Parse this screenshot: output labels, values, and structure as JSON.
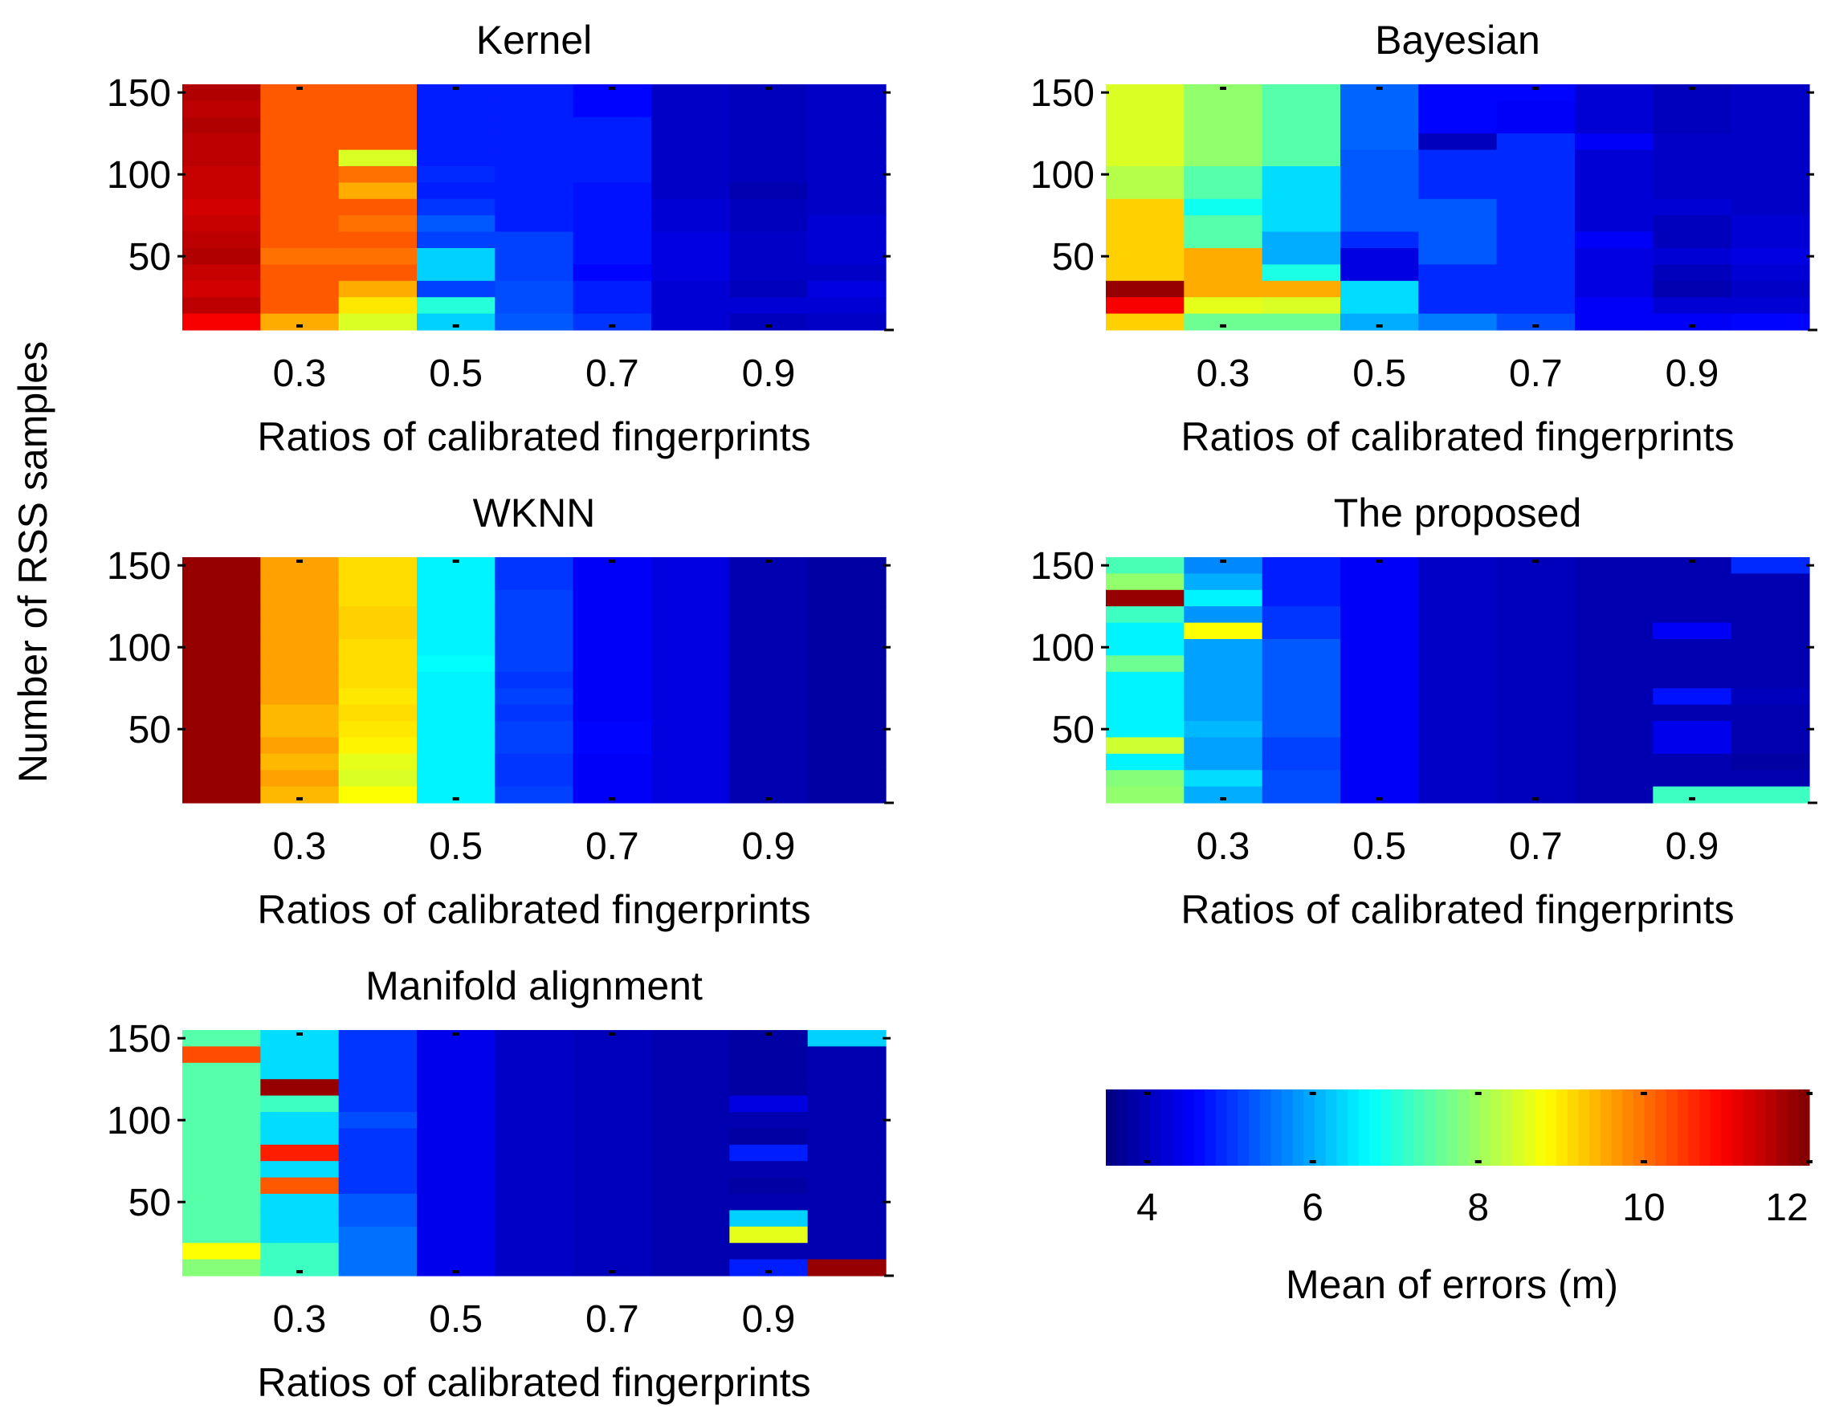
{
  "figure": {
    "ylabel": "Number of RSS samples",
    "colorbar": {
      "label": "Mean of errors (m)",
      "range": [
        3.5,
        12
      ],
      "ticks": [
        "4",
        "6",
        "8",
        "10",
        "12"
      ],
      "colormap": "jet"
    }
  },
  "chart_data": [
    {
      "type": "heatmap",
      "title": "Kernel",
      "xlabel": "Ratios of calibrated fingerprints",
      "x": [
        0.2,
        0.3,
        0.4,
        0.5,
        0.6,
        0.7,
        0.8,
        0.9,
        1.0
      ],
      "xtick_labels": [
        "0.3",
        "0.5",
        "0.7",
        "0.9"
      ],
      "ytick_labels": [
        "150",
        "100",
        "50"
      ],
      "ylim": [
        5,
        155
      ],
      "columns": [
        [
          11.6,
          11.5,
          11.6,
          11.5,
          11.5,
          11.4,
          11.4,
          11.3,
          11.4,
          11.5,
          11.6,
          11.4,
          11.3,
          11.5,
          11.0
        ],
        [
          10.2,
          10.2,
          10.2,
          10.2,
          10.2,
          10.2,
          10.2,
          10.2,
          10.2,
          10.2,
          10.0,
          10.2,
          10.2,
          10.2,
          9.5
        ],
        [
          10.2,
          10.2,
          10.2,
          10.2,
          8.5,
          10.0,
          9.5,
          10.2,
          10.0,
          10.2,
          10.0,
          10.2,
          9.5,
          9.0,
          8.5
        ],
        [
          4.8,
          4.8,
          4.8,
          4.8,
          4.8,
          4.9,
          4.8,
          5.0,
          5.3,
          5.1,
          6.3,
          6.3,
          5.1,
          7.0,
          6.3
        ],
        [
          4.8,
          4.8,
          4.8,
          4.8,
          4.8,
          4.8,
          4.8,
          4.8,
          4.8,
          5.1,
          5.1,
          5.1,
          5.2,
          5.2,
          5.3
        ],
        [
          4.6,
          4.6,
          4.8,
          4.8,
          4.8,
          4.8,
          4.7,
          4.7,
          4.7,
          4.7,
          4.7,
          4.6,
          4.8,
          4.8,
          5.0
        ],
        [
          4.1,
          4.1,
          4.1,
          4.1,
          4.1,
          4.1,
          4.1,
          4.2,
          4.2,
          4.3,
          4.3,
          4.3,
          4.2,
          4.2,
          4.2
        ],
        [
          4.0,
          4.0,
          4.0,
          4.0,
          4.0,
          4.0,
          3.9,
          4.0,
          4.0,
          4.1,
          4.1,
          4.1,
          4.0,
          4.2,
          4.0
        ],
        [
          4.1,
          4.1,
          4.1,
          4.1,
          4.1,
          4.1,
          4.1,
          4.1,
          4.2,
          4.2,
          4.2,
          4.1,
          4.3,
          4.2,
          4.1
        ]
      ]
    },
    {
      "type": "heatmap",
      "title": "Bayesian",
      "xlabel": "Ratios of calibrated fingerprints",
      "x": [
        0.2,
        0.3,
        0.4,
        0.5,
        0.6,
        0.7,
        0.8,
        0.9,
        1.0
      ],
      "xtick_labels": [
        "0.3",
        "0.5",
        "0.7",
        "0.9"
      ],
      "ytick_labels": [
        "150",
        "100",
        "50"
      ],
      "ylim": [
        5,
        155
      ],
      "columns": [
        [
          8.5,
          8.5,
          8.5,
          8.5,
          8.5,
          8.2,
          8.2,
          9.2,
          9.2,
          9.2,
          9.2,
          9.2,
          11.8,
          11.0,
          9.2
        ],
        [
          7.9,
          7.9,
          7.9,
          7.9,
          7.9,
          7.4,
          7.4,
          6.8,
          7.4,
          7.4,
          9.5,
          9.5,
          9.5,
          8.6,
          7.6
        ],
        [
          7.4,
          7.4,
          7.4,
          7.4,
          7.4,
          6.4,
          6.4,
          6.4,
          6.4,
          6.0,
          6.0,
          6.9,
          9.5,
          8.5,
          7.6
        ],
        [
          5.4,
          5.4,
          5.4,
          5.4,
          5.3,
          5.3,
          5.3,
          5.3,
          5.3,
          4.9,
          4.3,
          4.3,
          6.4,
          6.4,
          6.0
        ],
        [
          4.6,
          4.6,
          4.6,
          4.0,
          4.9,
          4.9,
          4.9,
          5.3,
          5.3,
          5.3,
          5.3,
          4.9,
          4.9,
          4.9,
          5.6
        ],
        [
          4.6,
          4.5,
          4.5,
          4.9,
          4.9,
          4.9,
          4.9,
          4.9,
          4.9,
          4.9,
          4.9,
          4.9,
          4.9,
          4.9,
          5.2
        ],
        [
          4.2,
          4.2,
          4.2,
          4.5,
          4.2,
          4.2,
          4.2,
          4.2,
          4.2,
          4.5,
          4.3,
          4.3,
          4.3,
          4.5,
          4.5
        ],
        [
          4.0,
          4.0,
          4.0,
          4.1,
          4.1,
          4.1,
          4.1,
          4.2,
          4.0,
          4.0,
          4.2,
          4.0,
          3.9,
          4.2,
          4.5
        ],
        [
          4.1,
          4.1,
          4.1,
          4.1,
          4.1,
          4.1,
          4.1,
          4.1,
          4.2,
          4.2,
          4.3,
          4.2,
          4.1,
          4.2,
          4.6
        ]
      ]
    },
    {
      "type": "heatmap",
      "title": "WKNN",
      "xlabel": "Ratios of calibrated fingerprints",
      "x": [
        0.2,
        0.3,
        0.4,
        0.5,
        0.6,
        0.7,
        0.8,
        0.9,
        1.0
      ],
      "xtick_labels": [
        "0.3",
        "0.5",
        "0.7",
        "0.9"
      ],
      "ytick_labels": [
        "150",
        "100",
        "50"
      ],
      "ylim": [
        5,
        155
      ],
      "columns": [
        [
          11.8,
          11.8,
          11.8,
          11.8,
          11.8,
          11.8,
          11.8,
          11.8,
          11.8,
          11.8,
          11.8,
          11.8,
          11.8,
          11.8,
          11.8
        ],
        [
          9.6,
          9.6,
          9.6,
          9.6,
          9.6,
          9.6,
          9.6,
          9.6,
          9.6,
          9.4,
          9.4,
          9.6,
          9.4,
          9.6,
          9.4
        ],
        [
          9.1,
          9.1,
          9.1,
          9.2,
          9.2,
          9.1,
          9.1,
          9.1,
          9.0,
          9.1,
          9.0,
          8.9,
          8.6,
          8.5,
          8.8
        ],
        [
          6.6,
          6.6,
          6.6,
          6.6,
          6.6,
          6.6,
          6.7,
          6.6,
          6.6,
          6.6,
          6.6,
          6.6,
          6.6,
          6.6,
          6.6
        ],
        [
          5.0,
          5.0,
          5.1,
          5.1,
          5.1,
          5.1,
          5.1,
          5.0,
          5.1,
          5.0,
          5.1,
          5.1,
          5.0,
          5.0,
          5.1
        ],
        [
          4.5,
          4.5,
          4.5,
          4.5,
          4.5,
          4.5,
          4.5,
          4.5,
          4.5,
          4.5,
          4.6,
          4.6,
          4.5,
          4.5,
          4.5
        ],
        [
          4.3,
          4.3,
          4.3,
          4.3,
          4.3,
          4.3,
          4.3,
          4.3,
          4.3,
          4.3,
          4.3,
          4.3,
          4.3,
          4.3,
          4.3
        ],
        [
          3.9,
          3.9,
          3.9,
          3.9,
          3.9,
          3.9,
          3.9,
          3.9,
          3.9,
          3.9,
          3.9,
          3.9,
          3.9,
          3.9,
          3.9
        ],
        [
          3.8,
          3.8,
          3.8,
          3.8,
          3.8,
          3.8,
          3.8,
          3.8,
          3.8,
          3.8,
          3.8,
          3.8,
          3.8,
          3.8,
          3.8
        ]
      ]
    },
    {
      "type": "heatmap",
      "title": "The proposed",
      "xlabel": "Ratios of calibrated fingerprints",
      "x": [
        0.2,
        0.3,
        0.4,
        0.5,
        0.6,
        0.7,
        0.8,
        0.9,
        1.0
      ],
      "xtick_labels": [
        "0.3",
        "0.5",
        "0.7",
        "0.9"
      ],
      "ytick_labels": [
        "150",
        "100",
        "50"
      ],
      "ylim": [
        5,
        155
      ],
      "columns": [
        [
          7.3,
          7.9,
          11.8,
          7.2,
          6.6,
          6.6,
          7.6,
          6.6,
          6.6,
          6.6,
          6.6,
          8.4,
          6.6,
          7.8,
          7.9
        ],
        [
          5.7,
          6.0,
          6.6,
          5.8,
          8.8,
          5.9,
          5.9,
          5.9,
          5.9,
          5.9,
          6.1,
          5.9,
          5.9,
          6.4,
          6.0
        ],
        [
          4.8,
          4.8,
          4.8,
          5.0,
          5.0,
          5.3,
          5.3,
          5.3,
          5.3,
          5.3,
          5.3,
          5.1,
          5.1,
          5.2,
          5.2
        ],
        [
          4.5,
          4.5,
          4.5,
          4.5,
          4.5,
          4.5,
          4.5,
          4.5,
          4.5,
          4.5,
          4.5,
          4.5,
          4.5,
          4.5,
          4.5
        ],
        [
          4.1,
          4.1,
          4.1,
          4.1,
          4.1,
          4.1,
          4.1,
          4.1,
          4.1,
          4.1,
          4.1,
          4.1,
          4.1,
          4.1,
          4.1
        ],
        [
          4.0,
          4.0,
          4.0,
          4.0,
          4.0,
          4.0,
          4.0,
          4.0,
          4.0,
          4.0,
          4.0,
          4.0,
          4.0,
          4.0,
          4.0
        ],
        [
          3.9,
          3.9,
          3.9,
          3.9,
          3.9,
          3.9,
          3.9,
          3.9,
          3.9,
          3.9,
          3.9,
          3.9,
          3.9,
          3.9,
          3.9
        ],
        [
          3.9,
          3.9,
          3.9,
          3.9,
          4.5,
          3.9,
          3.9,
          3.9,
          4.7,
          3.9,
          4.4,
          4.4,
          3.9,
          3.9,
          7.2
        ],
        [
          4.9,
          3.9,
          3.9,
          3.9,
          3.9,
          3.9,
          3.9,
          3.9,
          4.0,
          3.9,
          3.9,
          3.9,
          3.8,
          3.9,
          7.2
        ]
      ]
    },
    {
      "type": "heatmap",
      "title": "Manifold alignment",
      "xlabel": "Ratios of calibrated fingerprints",
      "x": [
        0.2,
        0.3,
        0.4,
        0.5,
        0.6,
        0.7,
        0.8,
        0.9,
        1.0
      ],
      "xtick_labels": [
        "0.3",
        "0.5",
        "0.7",
        "0.9"
      ],
      "ytick_labels": [
        "150",
        "100",
        "50"
      ],
      "ylim": [
        5,
        155
      ],
      "columns": [
        [
          7.4,
          10.3,
          7.4,
          7.4,
          7.4,
          7.4,
          7.4,
          7.4,
          7.4,
          7.4,
          7.4,
          7.4,
          7.4,
          8.8,
          7.8
        ],
        [
          6.4,
          6.4,
          6.4,
          11.8,
          7.2,
          6.4,
          6.4,
          10.7,
          6.4,
          10.2,
          6.4,
          6.4,
          6.4,
          7.2,
          7.2
        ],
        [
          5.0,
          5.0,
          5.0,
          5.0,
          5.0,
          5.2,
          5.0,
          5.0,
          5.0,
          5.0,
          5.3,
          5.3,
          5.5,
          5.5,
          5.5
        ],
        [
          4.4,
          4.4,
          4.4,
          4.4,
          4.4,
          4.4,
          4.4,
          4.4,
          4.4,
          4.4,
          4.4,
          4.4,
          4.4,
          4.4,
          4.4
        ],
        [
          4.1,
          4.1,
          4.1,
          4.1,
          4.1,
          4.1,
          4.1,
          4.1,
          4.1,
          4.1,
          4.1,
          4.1,
          4.1,
          4.1,
          4.1
        ],
        [
          4.0,
          4.0,
          4.0,
          4.0,
          4.0,
          4.0,
          4.0,
          4.0,
          4.0,
          4.0,
          4.0,
          4.0,
          4.0,
          4.0,
          4.0
        ],
        [
          3.9,
          3.9,
          3.9,
          3.9,
          3.9,
          3.9,
          3.9,
          3.9,
          3.9,
          3.9,
          3.9,
          3.9,
          3.9,
          3.9,
          3.9
        ],
        [
          3.8,
          3.8,
          3.8,
          3.8,
          4.3,
          3.9,
          3.8,
          4.8,
          3.9,
          3.8,
          3.9,
          6.3,
          8.6,
          3.9,
          4.8
        ],
        [
          6.3,
          3.9,
          3.9,
          3.9,
          3.9,
          3.9,
          3.9,
          3.9,
          3.9,
          3.9,
          3.9,
          3.9,
          3.9,
          3.9,
          11.8
        ]
      ]
    }
  ]
}
